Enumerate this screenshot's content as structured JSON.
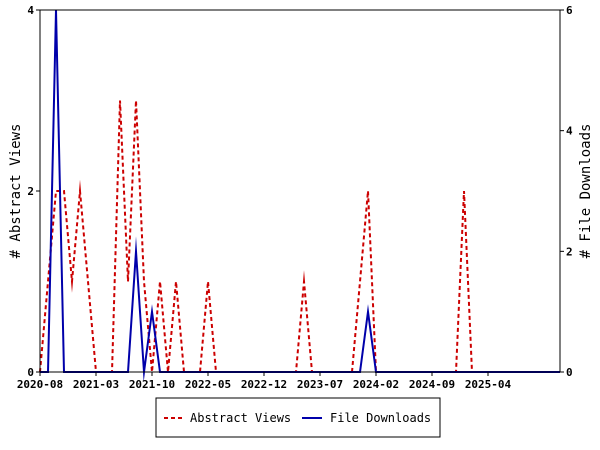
{
  "chart_data": {
    "type": "line",
    "title": "",
    "ylabel_left": "# Abstract Views",
    "ylabel_right": "# File Downloads",
    "ylim_left": [
      0,
      4
    ],
    "ylim_right": [
      0,
      6
    ],
    "yticks_left": [
      "0",
      "2",
      "4"
    ],
    "yticks_right": [
      "0",
      "2",
      "4",
      "6"
    ],
    "x_range": [
      "2020-08",
      "2026-01"
    ],
    "xticks": [
      "2020-08",
      "2021-03",
      "2021-10",
      "2022-05",
      "2022-12",
      "2023-07",
      "2024-02",
      "2024-09",
      "2025-04"
    ],
    "grid": false,
    "legend_position": "bottom-center",
    "series": [
      {
        "name": "Abstract Views",
        "axis": "left",
        "color": "#cc0000",
        "style": "dashed",
        "x": [
          "2020-08",
          "2020-09",
          "2020-10",
          "2020-11",
          "2020-12",
          "2021-01",
          "2021-02",
          "2021-03",
          "2021-04",
          "2021-05",
          "2021-06",
          "2021-07",
          "2021-08",
          "2021-09",
          "2021-10",
          "2021-11",
          "2021-12",
          "2022-01",
          "2022-02",
          "2022-03",
          "2022-04",
          "2022-05",
          "2022-06",
          "2023-04",
          "2023-05",
          "2023-06",
          "2023-11",
          "2023-12",
          "2024-01",
          "2024-02",
          "2024-12",
          "2025-01",
          "2025-02",
          "2026-01"
        ],
        "values": [
          0,
          1,
          2,
          2,
          1,
          2,
          1,
          0,
          0,
          0,
          3,
          1,
          3,
          1,
          0,
          1,
          0,
          1,
          0,
          0,
          0,
          1,
          0,
          0,
          1,
          0,
          0,
          1,
          2,
          0,
          0,
          2,
          0,
          0
        ]
      },
      {
        "name": "File Downloads",
        "axis": "right",
        "color": "#0000aa",
        "style": "solid",
        "x": [
          "2020-08",
          "2020-09",
          "2020-10",
          "2020-11",
          "2021-07",
          "2021-08",
          "2021-09",
          "2021-10",
          "2021-11",
          "2023-12",
          "2024-01",
          "2024-02",
          "2026-01"
        ],
        "values": [
          0,
          0,
          6,
          0,
          0,
          2,
          0,
          1,
          0,
          0,
          1,
          0,
          0
        ]
      }
    ]
  }
}
